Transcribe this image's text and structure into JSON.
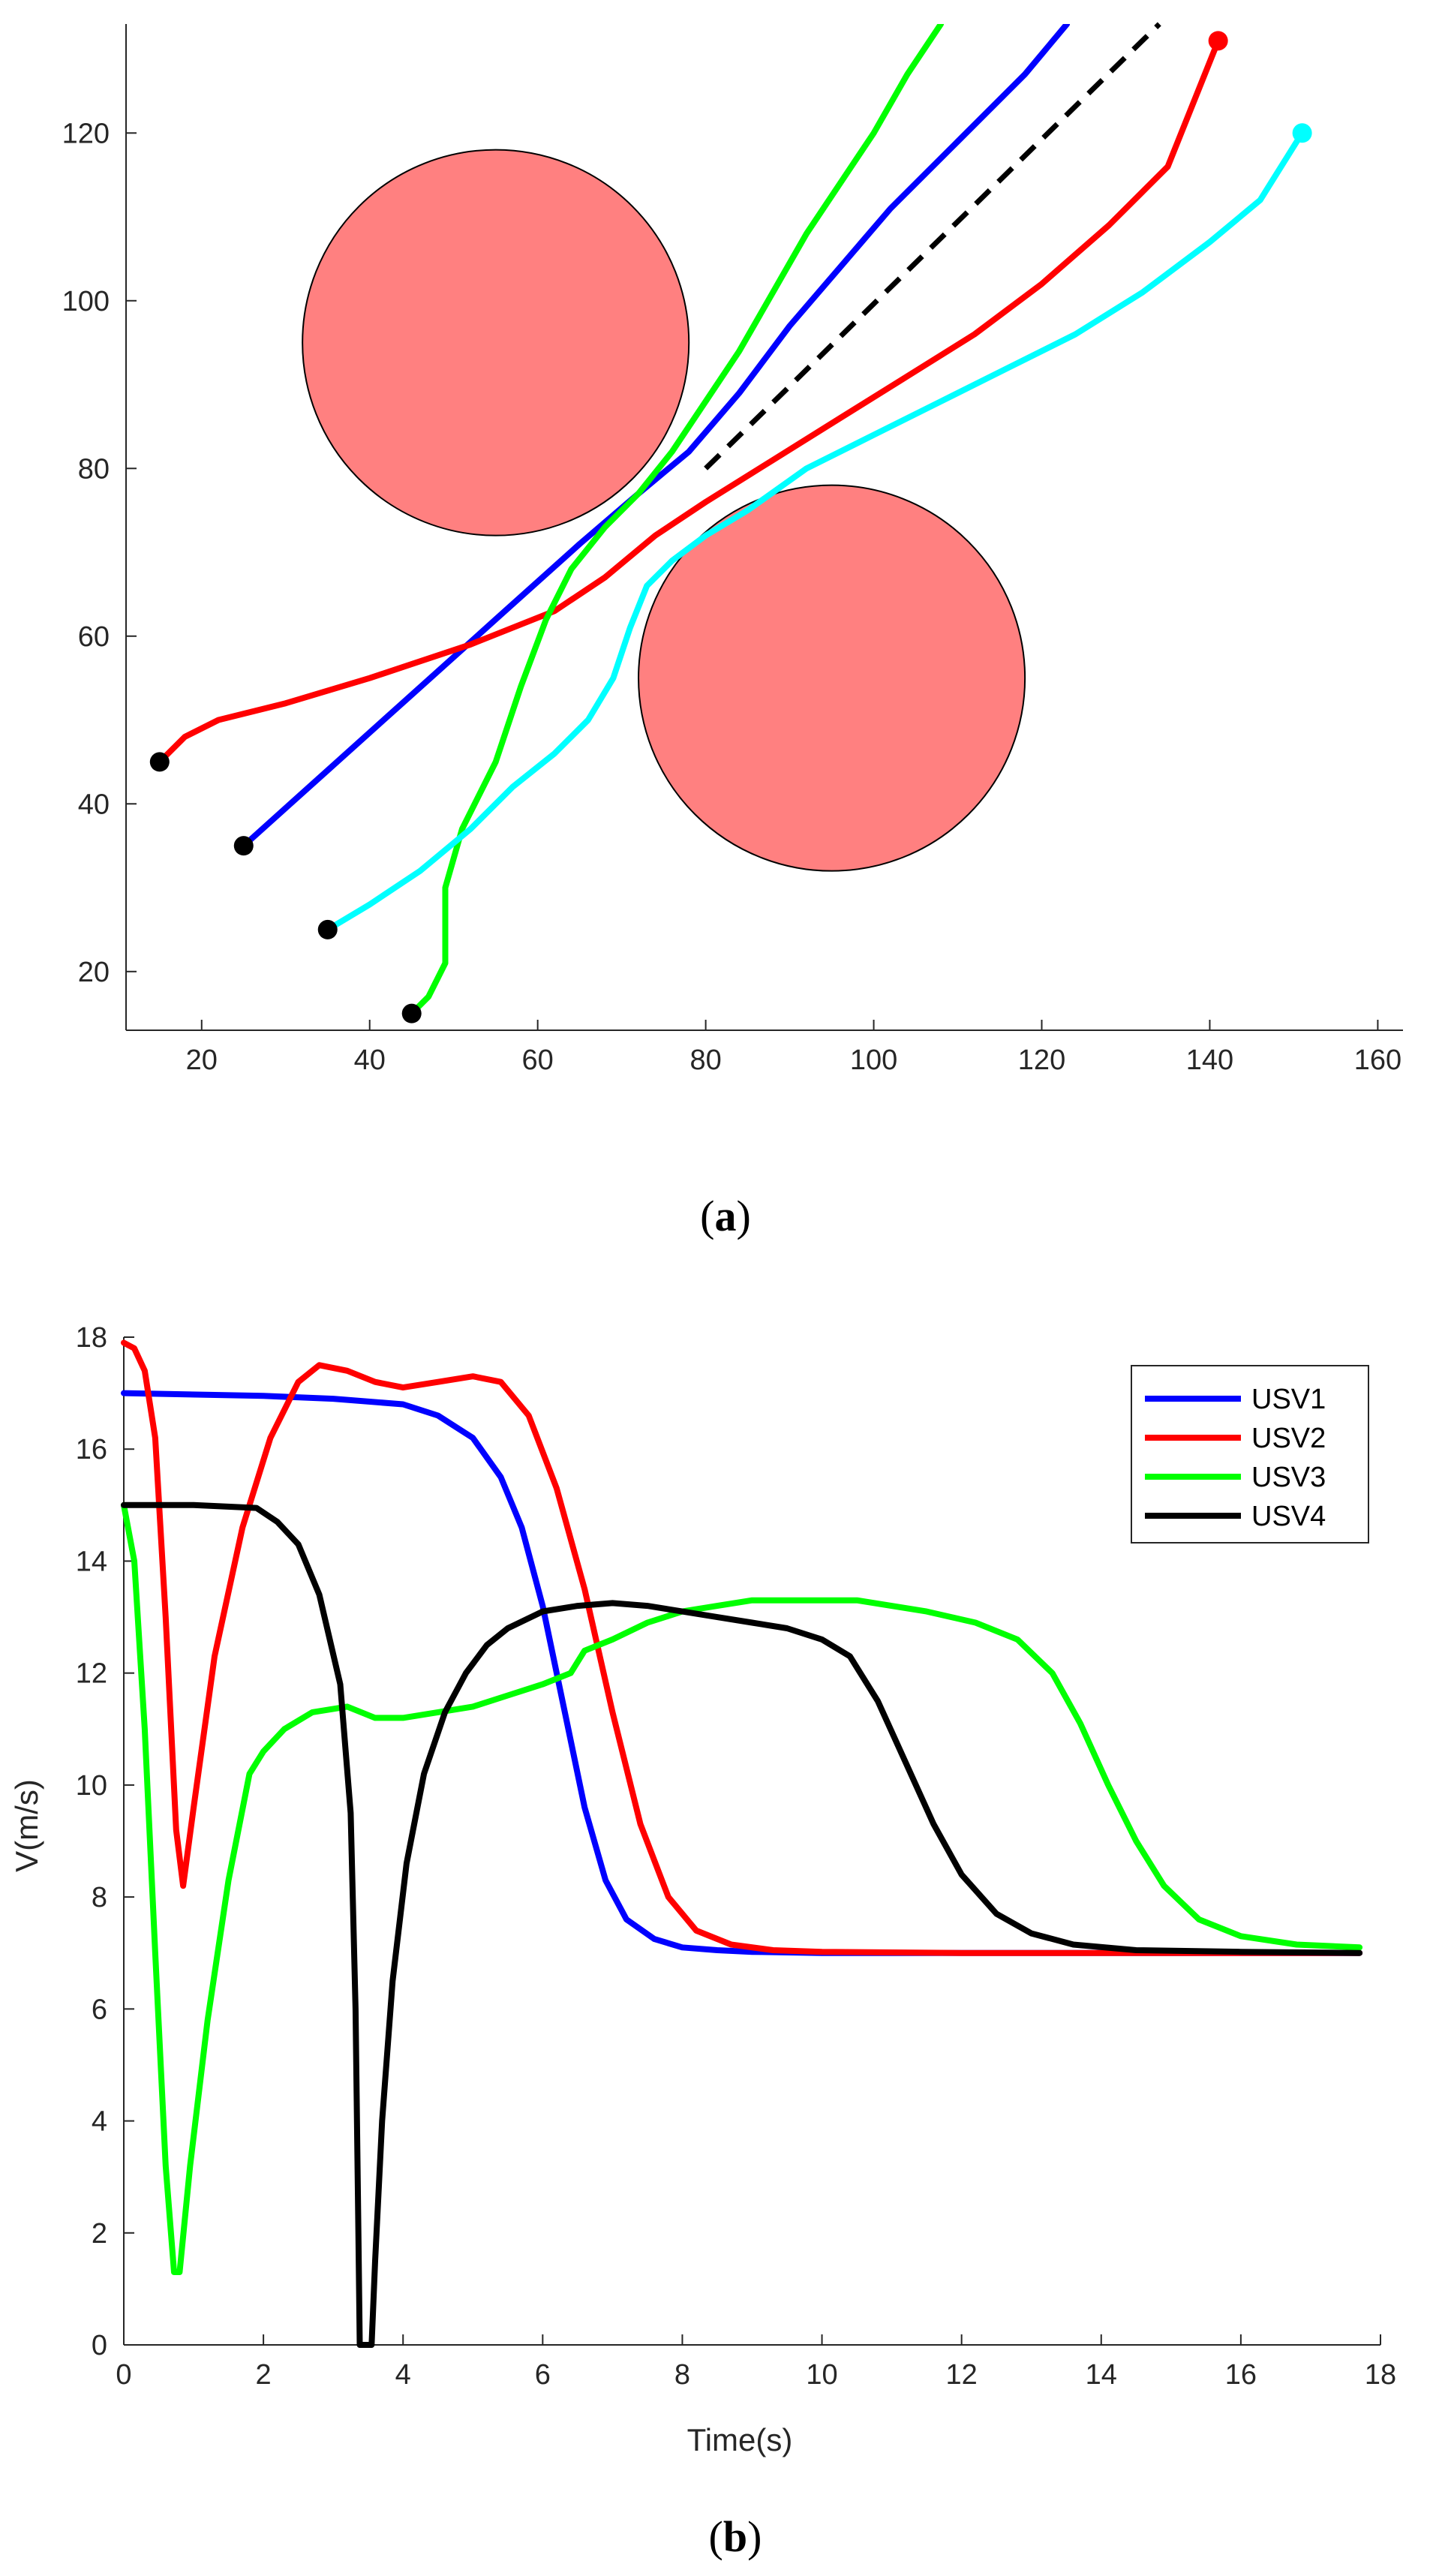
{
  "chart_data": [
    {
      "type": "line",
      "panel": "a",
      "caption": {
        "open": "(",
        "letter": "a",
        "close": ")"
      },
      "title": "",
      "xlabel": "",
      "ylabel": "",
      "xlim": [
        11,
        163
      ],
      "ylim": [
        13,
        133
      ],
      "xticks": [
        20,
        40,
        60,
        80,
        100,
        120,
        140,
        160
      ],
      "yticks": [
        20,
        40,
        60,
        80,
        100,
        120
      ],
      "obstacles": [
        {
          "name": "obstacle-1",
          "cx": 55,
          "cy": 95,
          "r": 23,
          "color": "#ff8080"
        },
        {
          "name": "obstacle-2",
          "cx": 95,
          "cy": 55,
          "r": 23,
          "color": "#ff8080"
        }
      ],
      "reference_path": {
        "name": "reference-path",
        "color": "#000000",
        "dash": true,
        "points": [
          [
            80,
            80
          ],
          [
            134,
            133
          ]
        ]
      },
      "series": [
        {
          "name": "USV1 path",
          "color": "#0000ff",
          "points": [
            [
              25,
              35
            ],
            [
              35,
              44
            ],
            [
              45,
              53
            ],
            [
              55,
              62
            ],
            [
              65,
              71
            ],
            [
              72,
              77
            ],
            [
              78,
              82
            ],
            [
              84,
              89
            ],
            [
              90,
              97
            ],
            [
              96,
              104
            ],
            [
              102,
              111
            ],
            [
              110,
              119
            ],
            [
              118,
              127
            ],
            [
              123,
              133
            ]
          ]
        },
        {
          "name": "USV2 path",
          "color": "#ff0000",
          "points": [
            [
              15,
              45
            ],
            [
              18,
              48
            ],
            [
              22,
              50
            ],
            [
              30,
              52
            ],
            [
              40,
              55
            ],
            [
              52,
              59
            ],
            [
              62,
              63
            ],
            [
              68,
              67
            ],
            [
              74,
              72
            ],
            [
              80,
              76
            ],
            [
              88,
              81
            ],
            [
              96,
              86
            ],
            [
              104,
              91
            ],
            [
              112,
              96
            ],
            [
              120,
              102
            ],
            [
              128,
              109
            ],
            [
              135,
              116
            ],
            [
              141,
              131
            ]
          ]
        },
        {
          "name": "USV3 path",
          "color": "#00ff00",
          "points": [
            [
              45,
              15
            ],
            [
              47,
              17
            ],
            [
              49,
              21
            ],
            [
              49,
              25
            ],
            [
              49,
              30
            ],
            [
              51,
              37
            ],
            [
              55,
              45
            ],
            [
              58,
              54
            ],
            [
              61,
              62
            ],
            [
              64,
              68
            ],
            [
              68,
              73
            ],
            [
              72,
              77
            ],
            [
              76,
              82
            ],
            [
              80,
              88
            ],
            [
              84,
              94
            ],
            [
              88,
              101
            ],
            [
              92,
              108
            ],
            [
              96,
              114
            ],
            [
              100,
              120
            ],
            [
              104,
              127
            ],
            [
              108,
              133
            ]
          ]
        },
        {
          "name": "USV4 path",
          "color": "#00ffff",
          "points": [
            [
              35,
              25
            ],
            [
              40,
              28
            ],
            [
              46,
              32
            ],
            [
              52,
              37
            ],
            [
              57,
              42
            ],
            [
              62,
              46
            ],
            [
              66,
              50
            ],
            [
              69,
              55
            ],
            [
              71,
              61
            ],
            [
              73,
              66
            ],
            [
              76,
              69
            ],
            [
              80,
              72
            ],
            [
              85,
              75
            ],
            [
              92,
              80
            ],
            [
              100,
              84
            ],
            [
              108,
              88
            ],
            [
              116,
              92
            ],
            [
              124,
              96
            ],
            [
              132,
              101
            ],
            [
              140,
              107
            ],
            [
              146,
              112
            ],
            [
              151,
              120
            ]
          ]
        }
      ],
      "start_markers": [
        [
          15,
          45
        ],
        [
          25,
          35
        ],
        [
          35,
          25
        ],
        [
          45,
          15
        ]
      ],
      "end_markers": [
        {
          "point": [
            141,
            131
          ],
          "color": "#ff0000"
        },
        {
          "point": [
            151,
            120
          ],
          "color": "#00ffff"
        }
      ]
    },
    {
      "type": "line",
      "panel": "b",
      "caption": {
        "open": "(",
        "letter": "b",
        "close": ")"
      },
      "title": "",
      "xlabel": "Time(s)",
      "ylabel": "V(m/s)",
      "xlim": [
        0,
        18
      ],
      "ylim": [
        0,
        18
      ],
      "xticks": [
        0,
        2,
        4,
        6,
        8,
        10,
        12,
        14,
        16,
        18
      ],
      "yticks": [
        0,
        2,
        4,
        6,
        8,
        10,
        12,
        14,
        16,
        18
      ],
      "legend_position": "top-right",
      "legend": [
        "USV1",
        "USV2",
        "USV3",
        "USV4"
      ],
      "series": [
        {
          "name": "USV1",
          "color": "#0000ff",
          "points": [
            [
              0,
              17.0
            ],
            [
              2,
              16.95
            ],
            [
              3,
              16.9
            ],
            [
              4,
              16.8
            ],
            [
              4.5,
              16.6
            ],
            [
              5,
              16.2
            ],
            [
              5.4,
              15.5
            ],
            [
              5.7,
              14.6
            ],
            [
              6,
              13.2
            ],
            [
              6.3,
              11.4
            ],
            [
              6.6,
              9.6
            ],
            [
              6.9,
              8.3
            ],
            [
              7.2,
              7.6
            ],
            [
              7.6,
              7.25
            ],
            [
              8,
              7.1
            ],
            [
              8.5,
              7.05
            ],
            [
              9,
              7.02
            ],
            [
              10,
              7.0
            ],
            [
              12,
              7.0
            ],
            [
              17.7,
              7.0
            ]
          ]
        },
        {
          "name": "USV2",
          "color": "#ff0000",
          "points": [
            [
              0,
              17.9
            ],
            [
              0.15,
              17.8
            ],
            [
              0.3,
              17.4
            ],
            [
              0.45,
              16.2
            ],
            [
              0.6,
              13.0
            ],
            [
              0.75,
              9.2
            ],
            [
              0.85,
              8.2
            ],
            [
              1.0,
              9.6
            ],
            [
              1.3,
              12.3
            ],
            [
              1.7,
              14.6
            ],
            [
              2.1,
              16.2
            ],
            [
              2.5,
              17.2
            ],
            [
              2.8,
              17.5
            ],
            [
              3.2,
              17.4
            ],
            [
              3.6,
              17.2
            ],
            [
              4,
              17.1
            ],
            [
              4.5,
              17.2
            ],
            [
              5,
              17.3
            ],
            [
              5.4,
              17.2
            ],
            [
              5.8,
              16.6
            ],
            [
              6.2,
              15.3
            ],
            [
              6.6,
              13.5
            ],
            [
              7,
              11.3
            ],
            [
              7.4,
              9.3
            ],
            [
              7.8,
              8.0
            ],
            [
              8.2,
              7.4
            ],
            [
              8.7,
              7.15
            ],
            [
              9.3,
              7.05
            ],
            [
              10,
              7.02
            ],
            [
              12,
              7.0
            ],
            [
              17.7,
              7.0
            ]
          ]
        },
        {
          "name": "USV3",
          "color": "#00ff00",
          "points": [
            [
              0,
              15.0
            ],
            [
              0.15,
              14.0
            ],
            [
              0.3,
              11.0
            ],
            [
              0.45,
              7.0
            ],
            [
              0.6,
              3.2
            ],
            [
              0.72,
              1.3
            ],
            [
              0.8,
              1.3
            ],
            [
              0.95,
              3.2
            ],
            [
              1.2,
              5.8
            ],
            [
              1.5,
              8.3
            ],
            [
              1.8,
              10.2
            ],
            [
              2,
              10.6
            ],
            [
              2.3,
              11.0
            ],
            [
              2.7,
              11.3
            ],
            [
              3.2,
              11.4
            ],
            [
              3.6,
              11.2
            ],
            [
              4,
              11.2
            ],
            [
              4.5,
              11.3
            ],
            [
              5,
              11.4
            ],
            [
              5.5,
              11.6
            ],
            [
              6,
              11.8
            ],
            [
              6.4,
              12.0
            ],
            [
              6.6,
              12.4
            ],
            [
              7,
              12.6
            ],
            [
              7.5,
              12.9
            ],
            [
              8,
              13.1
            ],
            [
              8.5,
              13.2
            ],
            [
              9,
              13.3
            ],
            [
              9.8,
              13.3
            ],
            [
              10.5,
              13.3
            ],
            [
              11.5,
              13.1
            ],
            [
              12.2,
              12.9
            ],
            [
              12.8,
              12.6
            ],
            [
              13.3,
              12.0
            ],
            [
              13.7,
              11.1
            ],
            [
              14.1,
              10.0
            ],
            [
              14.5,
              9.0
            ],
            [
              14.9,
              8.2
            ],
            [
              15.4,
              7.6
            ],
            [
              16,
              7.3
            ],
            [
              16.8,
              7.15
            ],
            [
              17.7,
              7.1
            ]
          ]
        },
        {
          "name": "USV4",
          "color": "#000000",
          "points": [
            [
              0,
              15.0
            ],
            [
              0.5,
              15.0
            ],
            [
              1,
              15.0
            ],
            [
              1.9,
              14.95
            ],
            [
              2.2,
              14.7
            ],
            [
              2.5,
              14.3
            ],
            [
              2.8,
              13.4
            ],
            [
              3.1,
              11.8
            ],
            [
              3.25,
              9.5
            ],
            [
              3.32,
              6.0
            ],
            [
              3.36,
              2.0
            ],
            [
              3.38,
              0.0
            ],
            [
              3.5,
              0.0
            ],
            [
              3.55,
              0.0
            ],
            [
              3.6,
              1.5
            ],
            [
              3.7,
              4.0
            ],
            [
              3.85,
              6.5
            ],
            [
              4.05,
              8.6
            ],
            [
              4.3,
              10.2
            ],
            [
              4.6,
              11.3
            ],
            [
              4.9,
              12.0
            ],
            [
              5.2,
              12.5
            ],
            [
              5.5,
              12.8
            ],
            [
              6,
              13.1
            ],
            [
              6.5,
              13.2
            ],
            [
              7,
              13.25
            ],
            [
              7.5,
              13.2
            ],
            [
              8,
              13.1
            ],
            [
              8.5,
              13.0
            ],
            [
              9,
              12.9
            ],
            [
              9.5,
              12.8
            ],
            [
              10,
              12.6
            ],
            [
              10.4,
              12.3
            ],
            [
              10.8,
              11.5
            ],
            [
              11.2,
              10.4
            ],
            [
              11.6,
              9.3
            ],
            [
              12,
              8.4
            ],
            [
              12.5,
              7.7
            ],
            [
              13,
              7.35
            ],
            [
              13.6,
              7.15
            ],
            [
              14.5,
              7.05
            ],
            [
              16,
              7.02
            ],
            [
              17.7,
              7.0
            ]
          ]
        }
      ]
    }
  ]
}
